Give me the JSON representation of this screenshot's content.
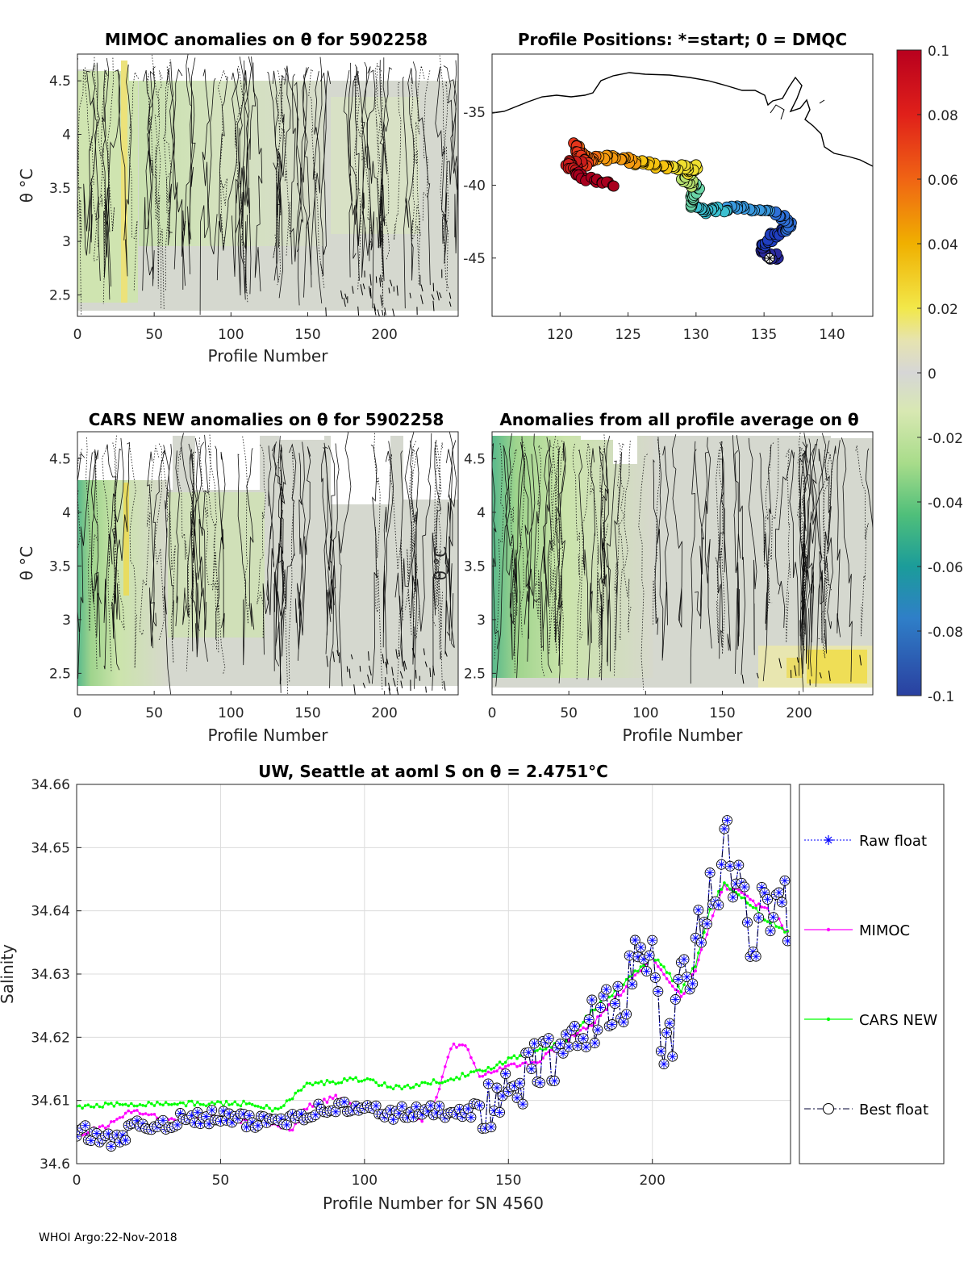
{
  "footer": "WHOI Argo:22-Nov-2018",
  "panels": {
    "mimoc": {
      "title": "MIMOC anomalies on θ  for 5902258",
      "ylabel": "θ °C",
      "xlabel": "Profile Number"
    },
    "positions": {
      "title": "Profile Positions: *=start; 0 = DMQC"
    },
    "cars": {
      "title": "CARS NEW anomalies on θ for 5902258",
      "ylabel": "θ °C",
      "xlabel": "Profile Number"
    },
    "avg": {
      "title": "Anomalies from all profile average on θ",
      "ylabel": "θ °C",
      "xlabel": "Profile Number"
    },
    "salinity": {
      "title": "UW, Seattle at aoml S on θ = 2.4751°C",
      "ylabel": "Salinity",
      "xlabel": "Profile Number for SN 4560"
    }
  },
  "legend": {
    "raw": "Raw float",
    "mimoc": "MIMOC",
    "cars": "CARS NEW",
    "best": "Best float"
  },
  "colors": {
    "raw": "#0000ff",
    "mimoc": "#ff00ff",
    "cars": "#00ff00",
    "best": "#000033"
  },
  "chart_data": [
    {
      "id": "mimoc",
      "type": "heatmap",
      "title": "MIMOC anomalies on θ  for 5902258",
      "xlabel": "Profile Number",
      "ylabel": "θ °C",
      "xlim": [
        0,
        248
      ],
      "ylim": [
        2.3,
        4.75
      ],
      "xticks": [
        0,
        50,
        100,
        150,
        200
      ],
      "yticks": [
        2.5,
        3,
        3.5,
        4,
        4.5
      ]
    },
    {
      "id": "positions",
      "type": "scatter",
      "title": "Profile Positions: *=start; 0 = DMQC",
      "xlim": [
        115,
        143
      ],
      "ylim": [
        -49,
        -31
      ],
      "xticks": [
        120,
        125,
        130,
        135,
        140
      ],
      "yticks": [
        -35,
        -40,
        -45
      ],
      "start": [
        136,
        -45
      ]
    },
    {
      "id": "cars",
      "type": "heatmap",
      "title": "CARS NEW anomalies on θ for 5902258",
      "xlabel": "Profile Number",
      "ylabel": "θ °C",
      "xlim": [
        0,
        248
      ],
      "ylim": [
        2.3,
        4.75
      ],
      "xticks": [
        0,
        50,
        100,
        150,
        200
      ],
      "yticks": [
        2.5,
        3,
        3.5,
        4,
        4.5
      ]
    },
    {
      "id": "avg",
      "type": "heatmap",
      "title": "Anomalies from all profile average on θ",
      "xlabel": "Profile Number",
      "ylabel": "θ °C",
      "xlim": [
        0,
        248
      ],
      "ylim": [
        2.3,
        4.75
      ],
      "xticks": [
        0,
        50,
        100,
        150,
        200
      ],
      "yticks": [
        2.5,
        3,
        3.5,
        4,
        4.5
      ]
    },
    {
      "id": "colorbar",
      "type": "heatmap",
      "clim": [
        -0.1,
        0.1
      ],
      "ticks": [
        "0.1",
        "0.08",
        "0.06",
        "0.04",
        "0.02",
        "0",
        "-0.02",
        "-0.04",
        "-0.06",
        "-0.08",
        "-0.1"
      ]
    },
    {
      "id": "salinity",
      "type": "line",
      "title": "UW, Seattle at aoml S on θ = 2.4751°C",
      "xlabel": "Profile Number for SN 4560",
      "ylabel": "Salinity",
      "xlim": [
        0,
        248
      ],
      "ylim": [
        34.6,
        34.66
      ],
      "xticks": [
        0,
        50,
        100,
        150,
        200
      ],
      "yticks": [
        "34.6",
        "34.61",
        "34.62",
        "34.63",
        "34.64",
        "34.65",
        "34.66"
      ],
      "grid": true,
      "legend_position": "right",
      "series": [
        {
          "name": "Raw float",
          "style": "dotted-star",
          "knots": [
            [
              0,
              34.6055
            ],
            [
              10,
              34.6035
            ],
            [
              20,
              34.6055
            ],
            [
              30,
              34.6065
            ],
            [
              40,
              34.607
            ],
            [
              50,
              34.6075
            ],
            [
              60,
              34.6065
            ],
            [
              70,
              34.607
            ],
            [
              80,
              34.608
            ],
            [
              90,
              34.609
            ],
            [
              100,
              34.6085
            ],
            [
              110,
              34.608
            ],
            [
              120,
              34.608
            ],
            [
              130,
              34.6085
            ],
            [
              140,
              34.6085
            ],
            [
              150,
              34.6105
            ],
            [
              160,
              34.616
            ],
            [
              170,
              34.617
            ],
            [
              180,
              34.623
            ],
            [
              190,
              34.627
            ],
            [
              200,
              34.633
            ],
            [
              205,
              34.616
            ],
            [
              210,
              34.627
            ],
            [
              220,
              34.641
            ],
            [
              225,
              34.65
            ],
            [
              230,
              34.642
            ],
            [
              235,
              34.636
            ],
            [
              240,
              34.642
            ],
            [
              245,
              34.646
            ],
            [
              248,
              34.632
            ]
          ]
        },
        {
          "name": "MIMOC",
          "style": "solid-dot",
          "knots": [
            [
              0,
              34.6045
            ],
            [
              10,
              34.606
            ],
            [
              20,
              34.6085
            ],
            [
              30,
              34.607
            ],
            [
              40,
              34.607
            ],
            [
              50,
              34.6075
            ],
            [
              60,
              34.6065
            ],
            [
              65,
              34.6065
            ],
            [
              70,
              34.606
            ],
            [
              75,
              34.6055
            ],
            [
              80,
              34.609
            ],
            [
              90,
              34.6105
            ],
            [
              100,
              34.6085
            ],
            [
              110,
              34.6085
            ],
            [
              120,
              34.607
            ],
            [
              125,
              34.6105
            ],
            [
              130,
              34.6185
            ],
            [
              135,
              34.619
            ],
            [
              140,
              34.614
            ],
            [
              150,
              34.6155
            ],
            [
              160,
              34.616
            ],
            [
              170,
              34.6195
            ],
            [
              180,
              34.6225
            ],
            [
              190,
              34.6275
            ],
            [
              200,
              34.6325
            ],
            [
              210,
              34.6265
            ],
            [
              215,
              34.6305
            ],
            [
              220,
              34.638
            ],
            [
              225,
              34.644
            ],
            [
              230,
              34.643
            ],
            [
              240,
              34.64
            ],
            [
              245,
              34.638
            ],
            [
              248,
              34.6355
            ]
          ]
        },
        {
          "name": "CARS NEW",
          "style": "solid-dot",
          "knots": [
            [
              0,
              34.609
            ],
            [
              20,
              34.6095
            ],
            [
              40,
              34.6095
            ],
            [
              60,
              34.6095
            ],
            [
              70,
              34.6085
            ],
            [
              80,
              34.6125
            ],
            [
              100,
              34.6135
            ],
            [
              110,
              34.612
            ],
            [
              120,
              34.6125
            ],
            [
              130,
              34.6135
            ],
            [
              140,
              34.6145
            ],
            [
              150,
              34.6165
            ],
            [
              160,
              34.618
            ],
            [
              170,
              34.6195
            ],
            [
              180,
              34.6245
            ],
            [
              190,
              34.6285
            ],
            [
              200,
              34.633
            ],
            [
              210,
              34.6275
            ],
            [
              215,
              34.6315
            ],
            [
              220,
              34.64
            ],
            [
              225,
              34.6445
            ],
            [
              230,
              34.6425
            ],
            [
              240,
              34.6385
            ],
            [
              248,
              34.6365
            ]
          ]
        },
        {
          "name": "Best float",
          "style": "dashdot-circle",
          "knots": [
            [
              0,
              34.6055
            ],
            [
              10,
              34.6035
            ],
            [
              20,
              34.6055
            ],
            [
              30,
              34.6065
            ],
            [
              40,
              34.607
            ],
            [
              50,
              34.6075
            ],
            [
              60,
              34.6065
            ],
            [
              70,
              34.607
            ],
            [
              80,
              34.608
            ],
            [
              90,
              34.609
            ],
            [
              100,
              34.6085
            ],
            [
              110,
              34.608
            ],
            [
              120,
              34.608
            ],
            [
              130,
              34.6085
            ],
            [
              140,
              34.6085
            ],
            [
              150,
              34.6105
            ],
            [
              160,
              34.616
            ],
            [
              170,
              34.617
            ],
            [
              180,
              34.623
            ],
            [
              190,
              34.627
            ],
            [
              200,
              34.633
            ],
            [
              205,
              34.616
            ],
            [
              210,
              34.627
            ],
            [
              220,
              34.641
            ],
            [
              225,
              34.65
            ],
            [
              230,
              34.642
            ],
            [
              235,
              34.636
            ],
            [
              240,
              34.642
            ],
            [
              245,
              34.646
            ],
            [
              248,
              34.632
            ]
          ]
        }
      ]
    }
  ]
}
